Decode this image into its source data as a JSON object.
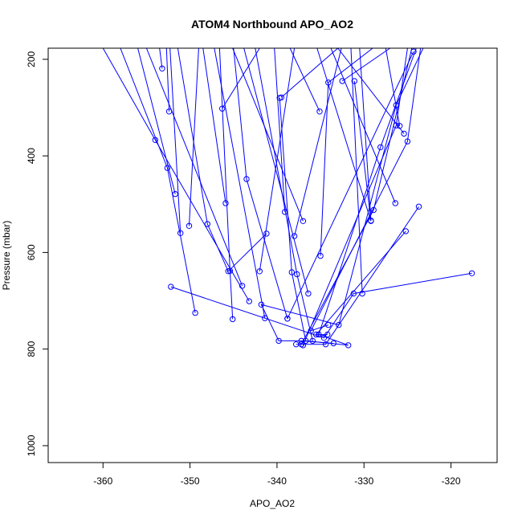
{
  "chart_data": {
    "type": "line",
    "title": "ATOM4 Northbound APO_AO2",
    "xlabel": "APO_AO2",
    "ylabel": "Pressure (mbar)",
    "xlim": [
      -366.3,
      -314.7
    ],
    "ylim": [
      1035,
      177
    ],
    "y_reversed": true,
    "x_ticks": [
      -360,
      -350,
      -340,
      -330,
      -320
    ],
    "x_tick_labels": [
      "-360",
      "-350",
      "-340",
      "-330",
      "-320"
    ],
    "y_ticks": [
      200,
      400,
      600,
      800,
      1000
    ],
    "y_tick_labels": [
      "200",
      "400",
      "600",
      "800",
      "1000"
    ],
    "grid": false,
    "legend": "none",
    "line_color": "#0000ff",
    "marker": "open-circle",
    "series": [
      {
        "points": [
          [
            -341.2,
            561
          ],
          [
            -345.6,
            639
          ],
          [
            -348.0,
            541
          ],
          [
            -351.4,
            177
          ]
        ]
      },
      {
        "points": [
          [
            -339.7,
            280
          ],
          [
            -338.3,
            641
          ],
          [
            -336.7,
            783
          ],
          [
            -331.8,
            792
          ],
          [
            -335.2,
            770
          ],
          [
            -328.1,
            382
          ],
          [
            -324.0,
            177
          ]
        ]
      },
      {
        "points": [
          [
            -331.1,
            245
          ],
          [
            -329.2,
            535
          ],
          [
            -335.4,
            177
          ]
        ]
      },
      {
        "points": [
          [
            -349.4,
            725
          ],
          [
            -352.6,
            425
          ],
          [
            -358.0,
            177
          ]
        ]
      },
      {
        "points": [
          [
            -353.2,
            219
          ],
          [
            -353.5,
            177
          ]
        ]
      },
      {
        "points": [
          [
            -352.2,
            671
          ],
          [
            -334.6,
            777
          ],
          [
            -331.2,
            685
          ],
          [
            -317.6,
            643
          ]
        ]
      },
      {
        "points": [
          [
            -335.9,
            783
          ],
          [
            -337.7,
            645
          ],
          [
            -342.5,
            177
          ]
        ]
      },
      {
        "points": [
          [
            -338.0,
            566
          ],
          [
            -332.6,
            177
          ]
        ]
      },
      {
        "points": [
          [
            -352.4,
            308
          ],
          [
            -352.7,
            177
          ]
        ]
      },
      {
        "points": [
          [
            -345.1,
            738
          ],
          [
            -345.4,
            638
          ],
          [
            -346.6,
            177
          ]
        ]
      },
      {
        "points": [
          [
            -333.5,
            788
          ],
          [
            -337.2,
            783
          ],
          [
            -339.8,
            783
          ],
          [
            -341.8,
            708
          ],
          [
            -332.9,
            750
          ],
          [
            -326.3,
            295
          ],
          [
            -323.2,
            177
          ]
        ]
      },
      {
        "points": [
          [
            -351.1,
            560
          ],
          [
            -352.3,
            177
          ]
        ]
      },
      {
        "points": [
          [
            -341.4,
            736
          ],
          [
            -347.2,
            177
          ]
        ]
      },
      {
        "points": [
          [
            -337.0,
            535
          ],
          [
            -345.1,
            177
          ]
        ]
      },
      {
        "points": [
          [
            -336.4,
            685
          ],
          [
            -343.8,
            177
          ]
        ]
      },
      {
        "points": [
          [
            -330.2,
            685
          ],
          [
            -331.5,
            177
          ]
        ]
      },
      {
        "points": [
          [
            -337.2,
            790
          ],
          [
            -328.9,
            512
          ],
          [
            -324.5,
            177
          ]
        ]
      },
      {
        "points": [
          [
            -325.9,
            338
          ],
          [
            -327.5,
            177
          ]
        ]
      },
      {
        "points": [
          [
            -335.0,
            607
          ],
          [
            -334.1,
            248
          ],
          [
            -329.0,
            177
          ]
        ]
      },
      {
        "points": [
          [
            -334.1,
            750
          ],
          [
            -336.1,
            762
          ],
          [
            -325.0,
            370
          ],
          [
            -323.5,
            177
          ]
        ]
      },
      {
        "points": [
          [
            -332.5,
            245
          ],
          [
            -327.0,
            177
          ]
        ]
      },
      {
        "points": [
          [
            -339.5,
            279
          ],
          [
            -333.0,
            177
          ]
        ]
      },
      {
        "points": [
          [
            -342.0,
            639
          ],
          [
            -338.0,
            177
          ]
        ]
      },
      {
        "points": [
          [
            -335.1,
            308
          ],
          [
            -338.5,
            177
          ]
        ]
      },
      {
        "points": [
          [
            -326.4,
            498
          ],
          [
            -333.8,
            177
          ]
        ]
      },
      {
        "points": [
          [
            -339.1,
            516
          ],
          [
            -340.3,
            177
          ]
        ]
      },
      {
        "points": [
          [
            -338.8,
            737
          ],
          [
            -343.5,
            448
          ],
          [
            -345.0,
            177
          ]
        ]
      },
      {
        "points": [
          [
            -343.2,
            701
          ],
          [
            -354.0,
            367
          ],
          [
            -360.0,
            177
          ]
        ]
      },
      {
        "points": [
          [
            -346.3,
            302
          ],
          [
            -342.0,
            177
          ]
        ]
      },
      {
        "points": [
          [
            -351.7,
            479
          ],
          [
            -356.0,
            177
          ]
        ]
      },
      {
        "points": [
          [
            -344.0,
            669
          ],
          [
            -355.0,
            177
          ]
        ]
      },
      {
        "points": [
          [
            -350.1,
            545
          ],
          [
            -349.0,
            177
          ]
        ]
      },
      {
        "points": [
          [
            -337.0,
            792
          ],
          [
            -326.3,
            337
          ],
          [
            -325.0,
            177
          ]
        ]
      },
      {
        "points": [
          [
            -323.7,
            505
          ],
          [
            -334.4,
            790
          ],
          [
            -337.8,
            790
          ]
        ]
      },
      {
        "points": [
          [
            -325.2,
            556
          ],
          [
            -335.5,
            770
          ],
          [
            -334.2,
            770
          ]
        ]
      },
      {
        "points": [
          [
            -325.4,
            354
          ],
          [
            -333.0,
            177
          ]
        ]
      },
      {
        "points": [
          [
            -329.2,
            534
          ],
          [
            -330.5,
            177
          ]
        ]
      },
      {
        "points": [
          [
            -345.9,
            498
          ],
          [
            -348.5,
            177
          ]
        ]
      },
      {
        "points": [
          [
            -324.3,
            184
          ],
          [
            -338.8,
            737
          ]
        ]
      }
    ]
  }
}
